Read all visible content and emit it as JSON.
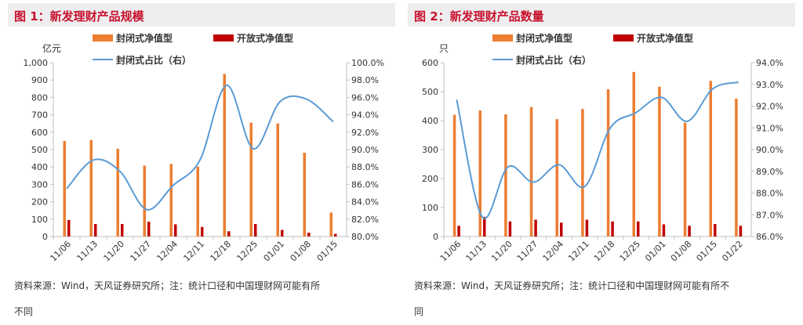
{
  "figures": [
    {
      "title": "图 1：新发理财产品规模",
      "note_line1": "资料来源：Wind，天风证券研究所；注：统计口径和中国理财网可能有所",
      "note_line2": "不同"
    },
    {
      "title": "图 2：新发理财产品数量",
      "note_line1": "资料来源：Wind，天风证券研究所；注：统计口径和中国理财网可能有所不",
      "note_line2": "同"
    }
  ],
  "chart_data": [
    {
      "type": "bar",
      "title": "新发理财产品规模",
      "ylabel": "亿元",
      "y2label": "",
      "categories": [
        "11/06",
        "11/13",
        "11/20",
        "11/27",
        "12/04",
        "12/11",
        "12/18",
        "12/25",
        "01/01",
        "01/08",
        "01/15"
      ],
      "ylim": [
        0,
        1000
      ],
      "yticks": [
        "0",
        "100",
        "200",
        "300",
        "400",
        "500",
        "600",
        "700",
        "800",
        "900",
        "1,000"
      ],
      "y2lim": [
        80,
        100
      ],
      "y2ticks": [
        "80.0%",
        "82.0%",
        "84.0%",
        "86.0%",
        "88.0%",
        "90.0%",
        "92.0%",
        "94.0%",
        "96.0%",
        "98.0%",
        "100.0%"
      ],
      "grid": false,
      "legend_placement": "top",
      "series": [
        {
          "name": "封闭式净值型",
          "type": "bar",
          "color": "#ed7d31",
          "values": [
            550,
            555,
            505,
            408,
            418,
            402,
            935,
            655,
            650,
            482,
            138
          ]
        },
        {
          "name": "开放式净值型",
          "type": "bar",
          "color": "#c00000",
          "values": [
            95,
            72,
            72,
            85,
            70,
            55,
            30,
            72,
            38,
            22,
            15
          ]
        },
        {
          "name": "封闭式占比（右）",
          "type": "line",
          "axis": "right",
          "color": "#5b9bd5",
          "values": [
            85.5,
            88.8,
            87.5,
            83.1,
            85.9,
            88.8,
            97.4,
            90.1,
            95.5,
            95.8,
            93.2
          ]
        }
      ]
    },
    {
      "type": "bar",
      "title": "新发理财产品数量",
      "ylabel": "只",
      "y2label": "",
      "categories": [
        "11/06",
        "11/13",
        "11/20",
        "11/27",
        "12/04",
        "12/11",
        "12/18",
        "12/25",
        "01/01",
        "01/08",
        "01/15",
        "01/22"
      ],
      "ylim": [
        0,
        600
      ],
      "yticks": [
        "0",
        "100",
        "200",
        "300",
        "400",
        "500",
        "600"
      ],
      "y2lim": [
        86,
        94
      ],
      "y2ticks": [
        "86.0%",
        "87.0%",
        "88.0%",
        "89.0%",
        "90.0%",
        "91.0%",
        "92.0%",
        "93.0%",
        "94.0%"
      ],
      "grid": false,
      "legend_placement": "top",
      "series": [
        {
          "name": "封闭式净值型",
          "type": "bar",
          "color": "#ed7d31",
          "values": [
            420,
            435,
            422,
            447,
            405,
            440,
            508,
            568,
            517,
            393,
            537,
            476
          ]
        },
        {
          "name": "开放式净值型",
          "type": "bar",
          "color": "#c00000",
          "values": [
            37,
            68,
            52,
            58,
            48,
            58,
            52,
            52,
            42,
            37,
            43,
            37
          ]
        },
        {
          "name": "封闭式占比（右）",
          "type": "line",
          "axis": "right",
          "color": "#5b9bd5",
          "values": [
            92.3,
            86.9,
            89.2,
            88.5,
            89.3,
            88.3,
            91.0,
            91.7,
            92.4,
            91.3,
            92.8,
            93.1
          ]
        }
      ]
    }
  ]
}
